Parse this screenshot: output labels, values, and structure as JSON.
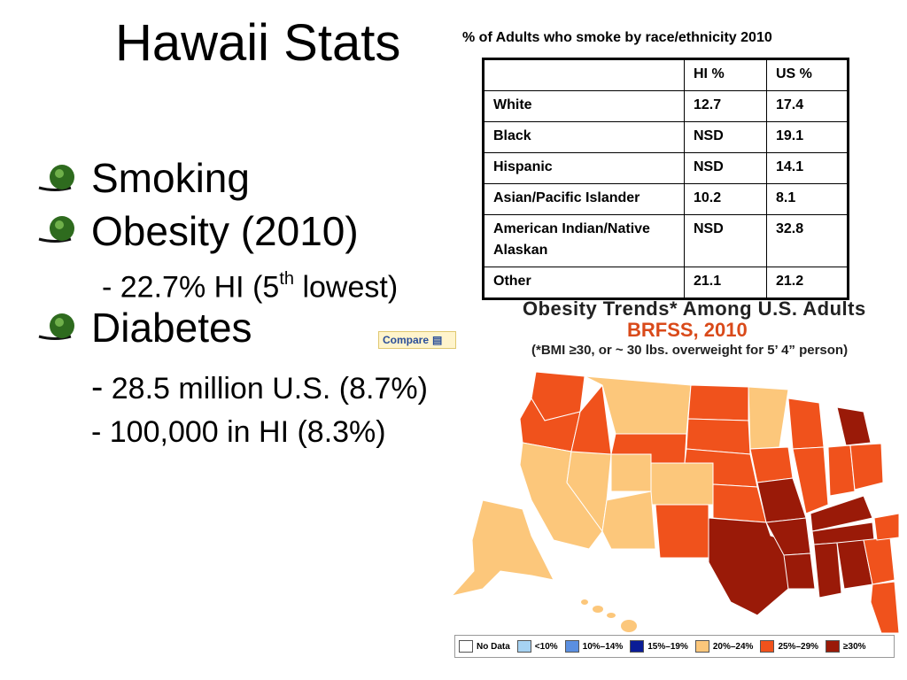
{
  "title": "Hawaii Stats",
  "bullets": [
    {
      "label": "Smoking"
    },
    {
      "label": "Obesity (2010)"
    },
    {
      "label": "Diabetes"
    }
  ],
  "obesity_sub": {
    "pre": "- 22.7% HI (5",
    "sup": "th",
    "post": " lowest)"
  },
  "diabetes_sub": [
    {
      "dash": "-",
      "text": " 28.5 million U.S. (8.7%)"
    },
    {
      "text": "- 100,000 in HI (8.3%)"
    }
  ],
  "compare_label": "Compare",
  "smoking_table": {
    "caption": "% of Adults who smoke by race/ethnicity 2010",
    "headers": [
      "",
      "HI %",
      "US %"
    ],
    "rows": [
      [
        "White",
        "12.7",
        "17.4"
      ],
      [
        "Black",
        "NSD",
        "19.1"
      ],
      [
        "Hispanic",
        "NSD",
        "14.1"
      ],
      [
        "Asian/Pacific Islander",
        "10.2",
        "8.1"
      ],
      [
        "American Indian/Native Alaskan",
        "NSD",
        "32.8"
      ],
      [
        "Other",
        "21.1",
        "21.2"
      ]
    ]
  },
  "map": {
    "title": "Obesity Trends* Among U.S. Adults",
    "subtitle": "BRFSS, 2010",
    "note": "(*BMI ≥30, or ~ 30 lbs. overweight for 5’ 4” person)",
    "legend": [
      {
        "label": "No Data",
        "color": "#ffffff"
      },
      {
        "label": "<10%",
        "color": "#a6d2f2"
      },
      {
        "label": "10%–14%",
        "color": "#5b8fe0"
      },
      {
        "label": "15%–19%",
        "color": "#0a1c96"
      },
      {
        "label": "20%–24%",
        "color": "#fcc77b"
      },
      {
        "label": "25%–29%",
        "color": "#f0521c"
      },
      {
        "label": "≥30%",
        "color": "#9a1a08"
      }
    ]
  }
}
